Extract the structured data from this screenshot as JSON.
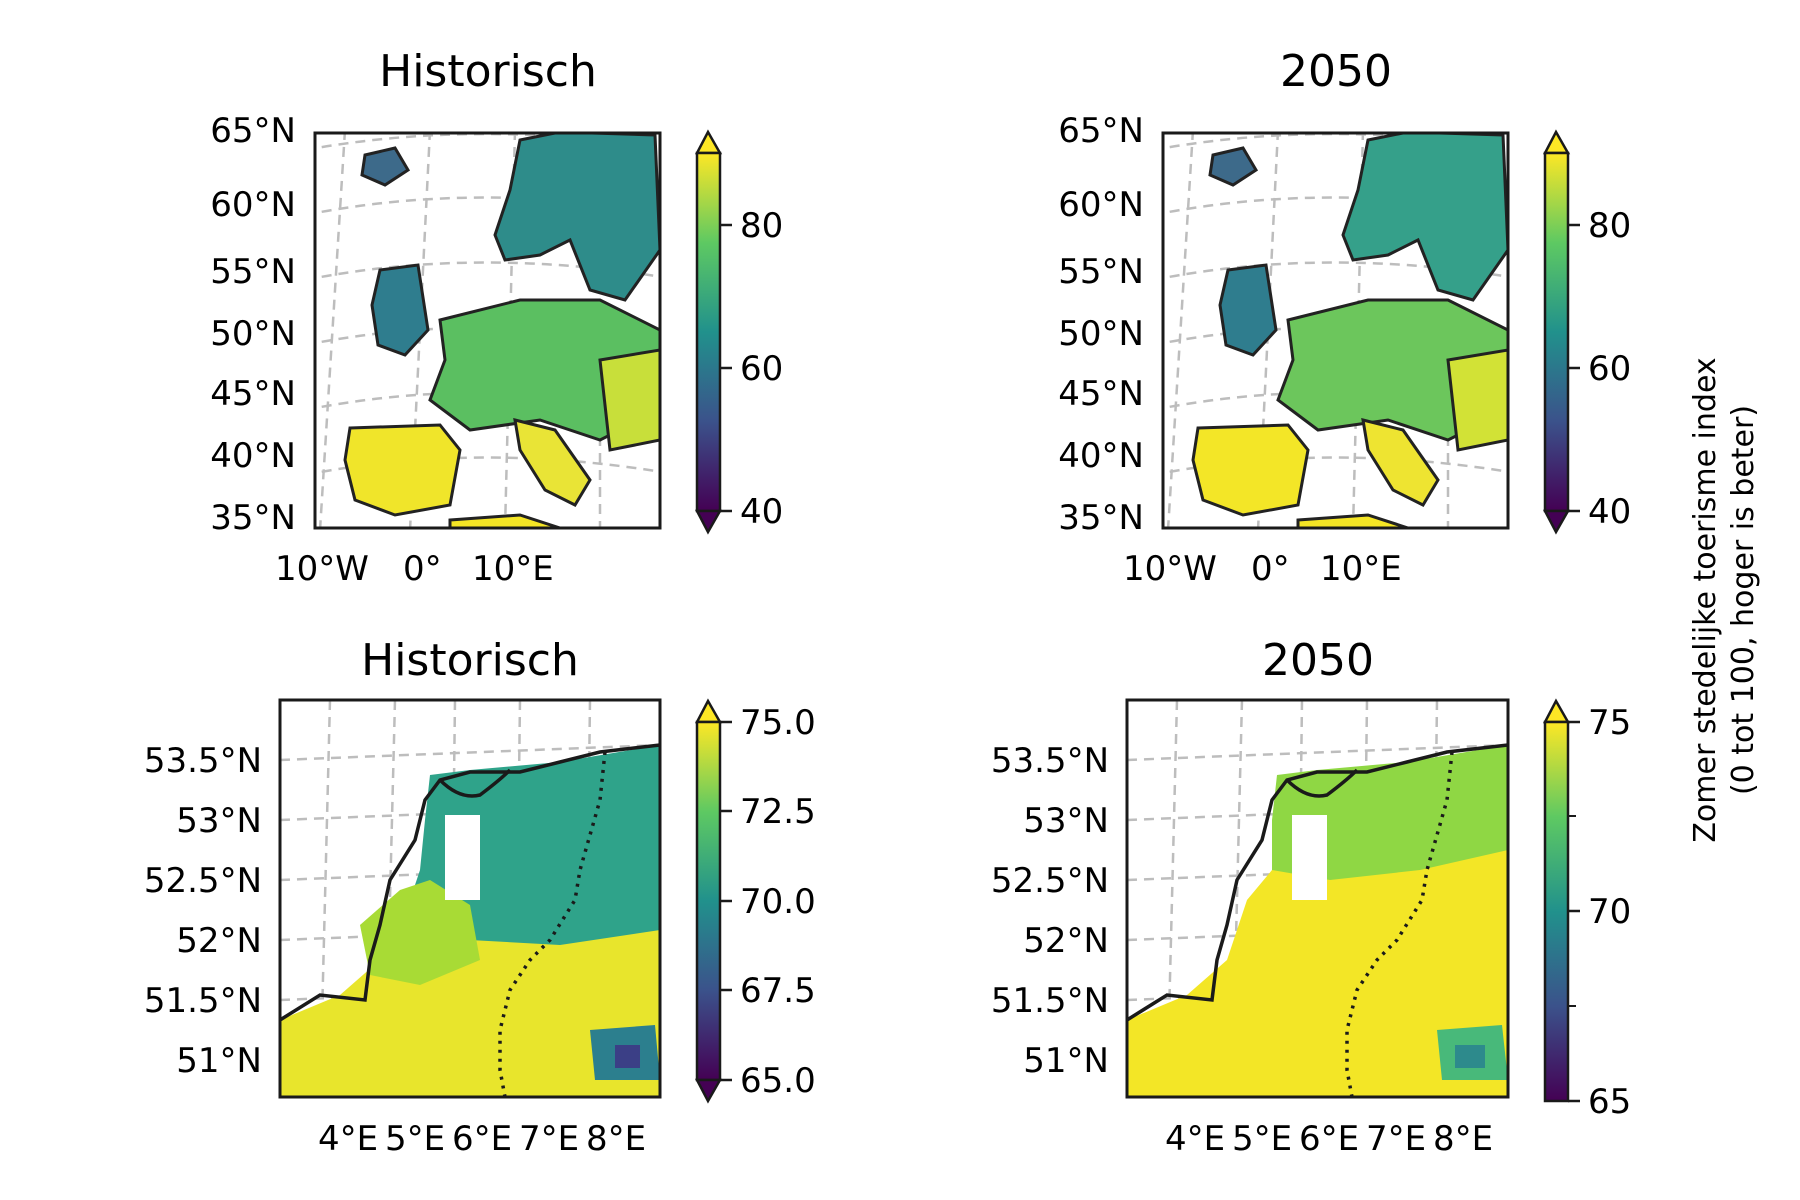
{
  "figure": {
    "colorbar_label_line1": "Zomer stedelijke toerisme index",
    "colorbar_label_line2": "(0 tot 100, hoger is beter)",
    "colormap": [
      "#440154",
      "#3b528b",
      "#21918c",
      "#5ec962",
      "#fde725"
    ]
  },
  "panels": [
    {
      "id": "europe-historisch",
      "title": "Historisch",
      "lat_ticks": [
        "65°N",
        "60°N",
        "55°N",
        "50°N",
        "45°N",
        "40°N",
        "35°N"
      ],
      "lon_ticks": [
        "10°W",
        "0°",
        "10°E"
      ],
      "colorbar_ticks": [
        "80",
        "60",
        "40"
      ],
      "colorbar_range": [
        40,
        90
      ]
    },
    {
      "id": "europe-2050",
      "title": "2050",
      "lat_ticks": [
        "65°N",
        "60°N",
        "55°N",
        "50°N",
        "45°N",
        "40°N",
        "35°N"
      ],
      "lon_ticks": [
        "10°W",
        "0°",
        "10°E"
      ],
      "colorbar_ticks": [
        "80",
        "60",
        "40"
      ],
      "colorbar_range": [
        40,
        90
      ]
    },
    {
      "id": "nl-historisch",
      "title": "Historisch",
      "lat_ticks": [
        "53.5°N",
        "53°N",
        "52.5°N",
        "52°N",
        "51.5°N",
        "51°N"
      ],
      "lon_ticks": [
        "4°E",
        "5°E",
        "6°E",
        "7°E",
        "8°E"
      ],
      "colorbar_ticks": [
        "75.0",
        "72.5",
        "70.0",
        "67.5",
        "65.0"
      ],
      "colorbar_range": [
        65,
        75
      ]
    },
    {
      "id": "nl-2050",
      "title": "2050",
      "lat_ticks": [
        "53.5°N",
        "53°N",
        "52.5°N",
        "52°N",
        "51.5°N",
        "51°N"
      ],
      "lon_ticks": [
        "4°E",
        "5°E",
        "6°E",
        "7°E",
        "8°E"
      ],
      "colorbar_ticks": [
        "75",
        "70",
        "65"
      ],
      "colorbar_range": [
        65,
        75
      ]
    }
  ]
}
